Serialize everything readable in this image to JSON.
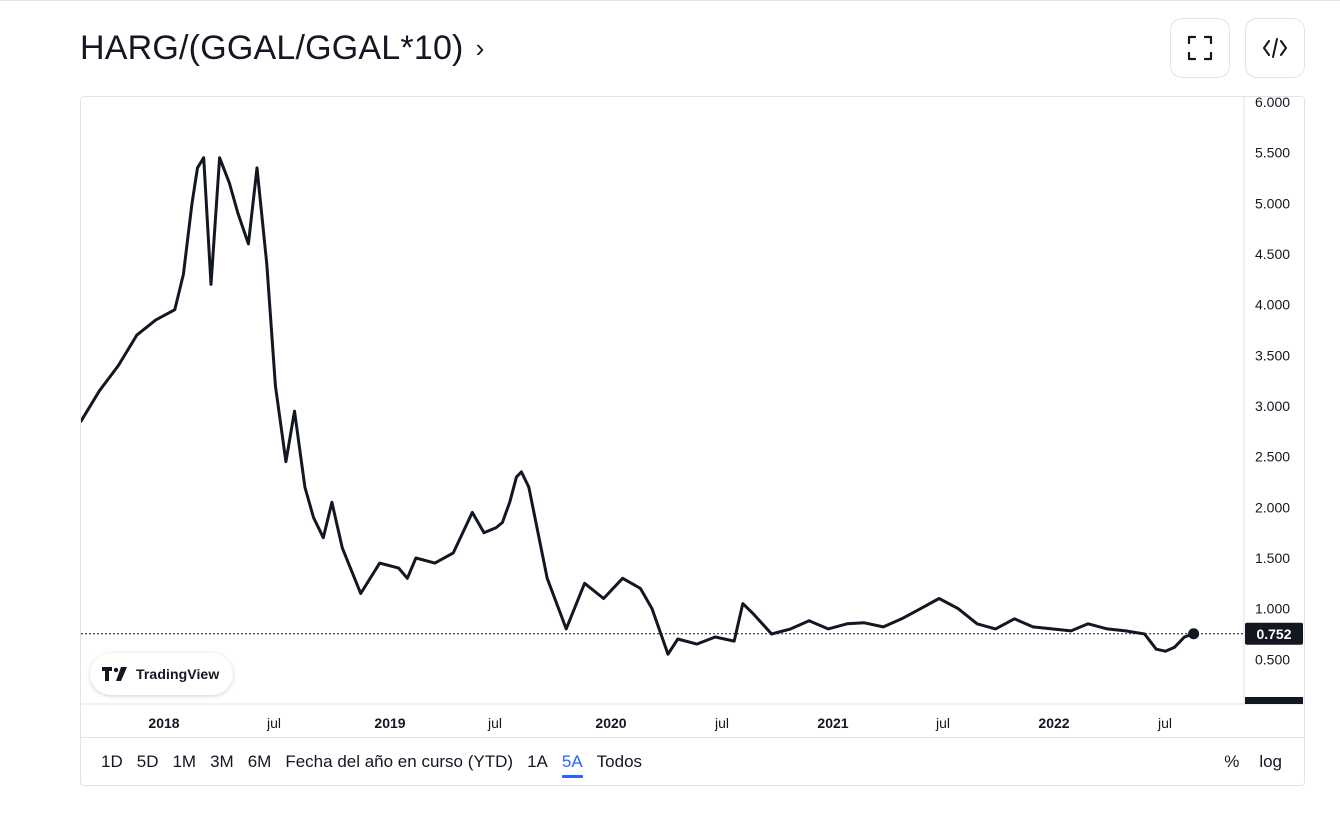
{
  "header": {
    "title": "HARG/(GGAL/GGAL*10)",
    "chevron": "›"
  },
  "toolbar": {
    "fullscreen_icon": "fullscreen-icon",
    "embed_icon": "code-embed-icon"
  },
  "branding": {
    "logo_icon": "tradingview-logo-icon",
    "label": "TradingView"
  },
  "price_axis": {
    "ticks": [
      "6.000",
      "5.500",
      "5.000",
      "4.500",
      "4.000",
      "3.500",
      "3.000",
      "2.500",
      "2.000",
      "1.500",
      "1.000",
      "0.500"
    ],
    "last_price_label": "0.752"
  },
  "time_axis": {
    "labels": [
      {
        "text": "2018",
        "bold": true
      },
      {
        "text": "jul",
        "bold": false
      },
      {
        "text": "2019",
        "bold": true
      },
      {
        "text": "jul",
        "bold": false
      },
      {
        "text": "2020",
        "bold": true
      },
      {
        "text": "jul",
        "bold": false
      },
      {
        "text": "2021",
        "bold": true
      },
      {
        "text": "jul",
        "bold": false
      },
      {
        "text": "2022",
        "bold": true
      },
      {
        "text": "jul",
        "bold": false
      }
    ]
  },
  "ranges": {
    "left": [
      "1D",
      "5D",
      "1M",
      "3M",
      "6M",
      "Fecha del año en curso (YTD)",
      "1A",
      "5A",
      "Todos"
    ],
    "active": "5A",
    "right": [
      "%",
      "log"
    ]
  },
  "colors": {
    "line": "#131722",
    "accent": "#2962ff",
    "label_bg": "#131722",
    "label_text": "#ffffff",
    "border": "#e0e3eb"
  },
  "chart_data": {
    "type": "line",
    "x_range": [
      "2017-09",
      "2022-09"
    ],
    "ylim": [
      0,
      6.0
    ],
    "last_value": 0.752,
    "x": [
      "2017-09-01",
      "2017-10-01",
      "2017-11-01",
      "2017-12-01",
      "2018-01-01",
      "2018-02-01",
      "2018-02-15",
      "2018-03-01",
      "2018-03-10",
      "2018-03-20",
      "2018-04-01",
      "2018-04-15",
      "2018-05-01",
      "2018-05-15",
      "2018-06-01",
      "2018-06-15",
      "2018-07-01",
      "2018-07-15",
      "2018-08-01",
      "2018-08-15",
      "2018-09-01",
      "2018-09-15",
      "2018-10-01",
      "2018-10-15",
      "2018-11-01",
      "2018-12-01",
      "2019-01-01",
      "2019-02-01",
      "2019-02-15",
      "2019-03-01",
      "2019-04-01",
      "2019-05-01",
      "2019-06-01",
      "2019-06-20",
      "2019-07-10",
      "2019-07-20",
      "2019-08-01",
      "2019-08-12",
      "2019-08-20",
      "2019-09-01",
      "2019-10-01",
      "2019-11-01",
      "2019-12-01",
      "2020-01-01",
      "2020-02-01",
      "2020-03-01",
      "2020-03-20",
      "2020-04-15",
      "2020-05-01",
      "2020-06-01",
      "2020-07-01",
      "2020-08-01",
      "2020-08-15",
      "2020-09-01",
      "2020-10-01",
      "2020-11-01",
      "2020-12-01",
      "2021-01-01",
      "2021-02-01",
      "2021-03-01",
      "2021-04-01",
      "2021-05-01",
      "2021-06-01",
      "2021-07-01",
      "2021-08-01",
      "2021-09-01",
      "2021-10-01",
      "2021-11-01",
      "2021-12-01",
      "2022-01-01",
      "2022-02-01",
      "2022-03-01",
      "2022-04-01",
      "2022-05-01",
      "2022-06-01",
      "2022-06-20",
      "2022-07-05",
      "2022-07-20",
      "2022-08-05",
      "2022-08-20"
    ],
    "y": [
      2.85,
      3.15,
      3.4,
      3.7,
      3.85,
      3.95,
      4.3,
      5.0,
      5.35,
      5.45,
      4.2,
      5.45,
      5.2,
      4.9,
      4.6,
      5.35,
      4.4,
      3.2,
      2.45,
      2.95,
      2.2,
      1.9,
      1.7,
      2.05,
      1.6,
      1.15,
      1.45,
      1.4,
      1.3,
      1.5,
      1.45,
      1.55,
      1.95,
      1.75,
      1.8,
      1.85,
      2.05,
      2.3,
      2.35,
      2.2,
      1.3,
      0.8,
      1.25,
      1.1,
      1.3,
      1.2,
      1.0,
      0.55,
      0.7,
      0.65,
      0.72,
      0.68,
      1.05,
      0.95,
      0.75,
      0.8,
      0.88,
      0.8,
      0.85,
      0.86,
      0.82,
      0.9,
      1.0,
      1.1,
      1.0,
      0.85,
      0.8,
      0.9,
      0.82,
      0.8,
      0.78,
      0.85,
      0.8,
      0.78,
      0.75,
      0.6,
      0.58,
      0.62,
      0.72,
      0.752
    ]
  }
}
